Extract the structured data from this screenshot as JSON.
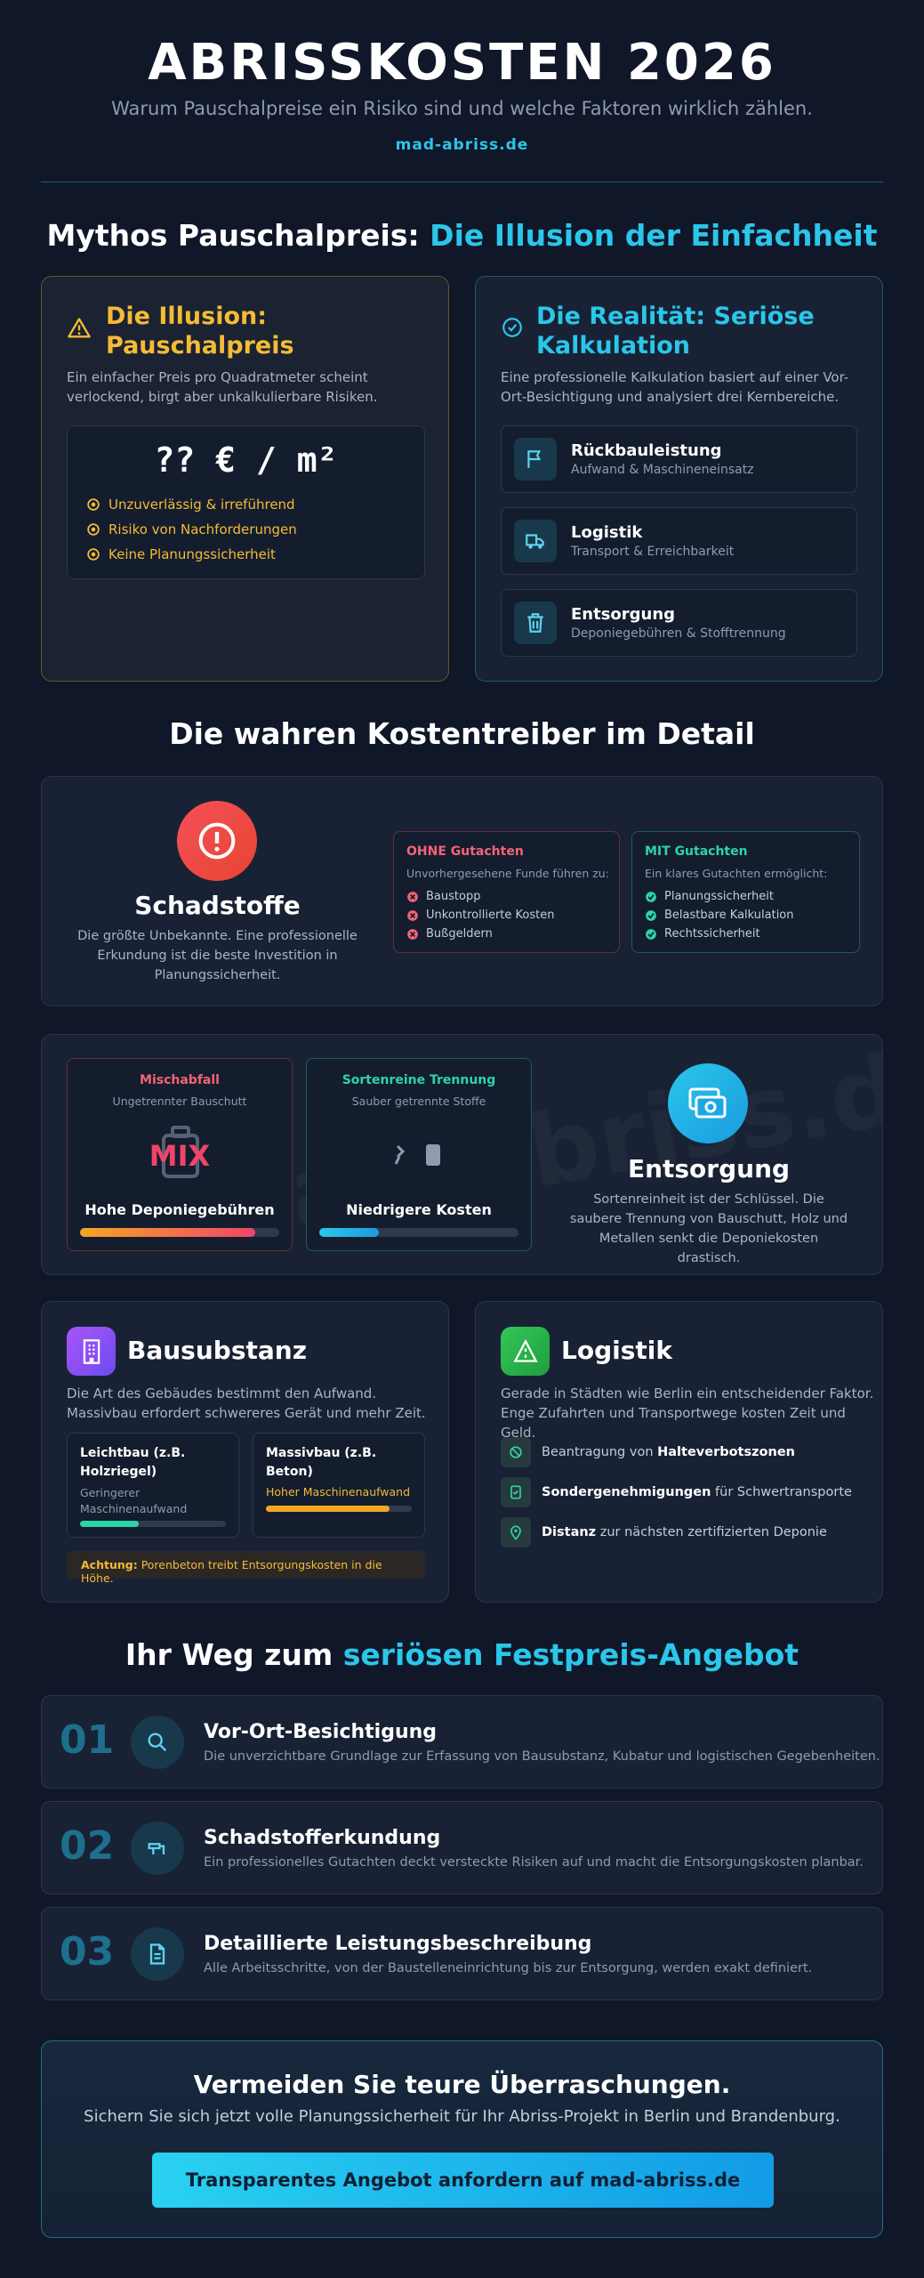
{
  "header": {
    "title": "ABRISSKOSTEN 2026",
    "subtitle": "Warum Pauschalpreise ein Risiko sind und welche Faktoren wirklich zählen.",
    "site": "mad-abriss.de"
  },
  "myth": {
    "heading": "Mythos Pauschalpreis:",
    "heading_highlight": "Die Illusion der Einfachheit",
    "illusion": {
      "title": "Die Illusion: Pauschalpreis",
      "text": "Ein einfacher Preis pro Quadratmeter scheint verlockend, birgt aber unkalkulierbare Risiken.",
      "price": "?? € / m²",
      "bullets": [
        "Unzuverlässig & irreführend",
        "Risiko von Nachforderungen",
        "Keine Planungssicherheit"
      ]
    },
    "reality": {
      "title": "Die Realität: Seriöse Kalkulation",
      "text": "Eine professionelle Kalkulation basiert auf einer Vor-Ort-Besichtigung und analysiert drei Kernbereiche.",
      "items": [
        {
          "title": "Rückbauleistung",
          "subtitle": "Aufwand & Maschineneinsatz"
        },
        {
          "title": "Logistik",
          "subtitle": "Transport & Erreichbarkeit"
        },
        {
          "title": "Entsorgung",
          "subtitle": "Deponiegebühren & Stofftrennung"
        }
      ]
    }
  },
  "drivers": {
    "heading": "Die wahren Kostentreiber im Detail",
    "hazard": {
      "title": "Schadstoffe",
      "text": "Die größte Unbekannte. Eine professionelle Erkundung ist die beste Investition in Planungssicherheit.",
      "without": {
        "title": "OHNE Gutachten",
        "intro": "Unvorhergesehene Funde führen zu:",
        "items": [
          "Baustopp",
          "Unkontrollierte Kosten",
          "Bußgeldern"
        ]
      },
      "with": {
        "title": "MIT Gutachten",
        "intro": "Ein klares Gutachten ermöglicht:",
        "items": [
          "Planungssicherheit",
          "Belastbare Kalkulation",
          "Rechtssicherheit"
        ]
      }
    },
    "disposal": {
      "watermark": "mad-abriss.de",
      "mixed": {
        "title": "Mischabfall",
        "subtitle": "Ungetrennter Bauschutt",
        "icon_text": "MIX",
        "label": "Hohe Deponiegebühren"
      },
      "sorted": {
        "title": "Sortenreine Trennung",
        "subtitle": "Sauber getrennte Stoffe",
        "label": "Niedrigere Kosten"
      },
      "title": "Entsorgung",
      "text": "Sortenreinheit ist der Schlüssel. Die saubere Trennung von Bauschutt, Holz und Metallen senkt die Deponiekosten drastisch."
    },
    "structure": {
      "title": "Bausubstanz",
      "text": "Die Art des Gebäudes bestimmt den Aufwand. Massivbau erfordert schwereres Gerät und mehr Zeit.",
      "light": {
        "title": "Leichtbau (z.B. Holzriegel)",
        "subtitle": "Geringerer Maschinenaufwand"
      },
      "solid": {
        "title": "Massivbau (z.B. Beton)",
        "subtitle": "Hoher Maschinenaufwand"
      },
      "warning": {
        "label": "Achtung:",
        "text": "Porenbeton treibt Entsorgungskosten in die Höhe."
      }
    },
    "logistics": {
      "title": "Logistik",
      "text": "Gerade in Städten wie Berlin ein entscheidender Faktor. Enge Zufahrten und Transportwege kosten Zeit und Geld.",
      "items": [
        {
          "parts": [
            {
              "text": "Beantragung von",
              "bold": false
            },
            {
              "text": "Halteverbotszonen",
              "bold": true
            }
          ]
        },
        {
          "parts": [
            {
              "text": "Sondergenehmigungen",
              "bold": true
            },
            {
              "text": "für Schwertransporte",
              "bold": false
            }
          ]
        },
        {
          "parts": [
            {
              "text": "Distanz",
              "bold": true
            },
            {
              "text": "zur nächsten zertifizierten Deponie",
              "bold": false
            }
          ]
        }
      ]
    }
  },
  "steps": {
    "heading": "Ihr Weg zum",
    "heading_highlight": "seriösen Festpreis-Angebot",
    "items": [
      {
        "number": "01",
        "title": "Vor-Ort-Besichtigung",
        "text": "Die unverzichtbare Grundlage zur Erfassung von Bausubstanz, Kubatur und logistischen Gegebenheiten."
      },
      {
        "number": "02",
        "title": "Schadstofferkundung",
        "text": "Ein professionelles Gutachten deckt versteckte Risiken auf und macht die Entsorgungskosten planbar."
      },
      {
        "number": "03",
        "title": "Detaillierte Leistungsbeschreibung",
        "text": "Alle Arbeitsschritte, von der Baustelleneinrichtung bis zur Entsorgung, werden exakt definiert."
      }
    ]
  },
  "cta": {
    "title": "Vermeiden Sie teure Überraschungen.",
    "text": "Sichern Sie sich jetzt volle Planungssicherheit für Ihr Abriss-Projekt in Berlin und Brandenburg.",
    "button": "Transparentes Angebot anfordern auf mad-abriss.de"
  }
}
